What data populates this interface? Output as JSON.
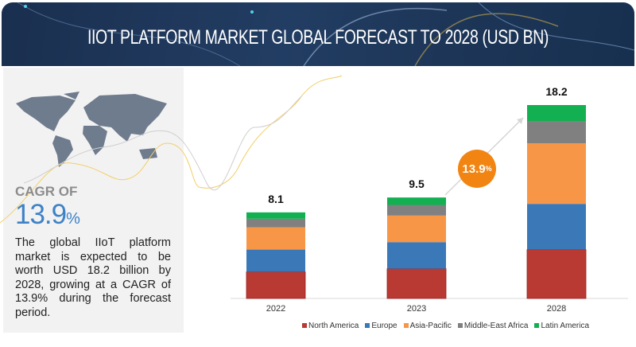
{
  "header": {
    "title": "IIOT PLATFORM MARKET GLOBAL FORECAST TO 2028 (USD BN)"
  },
  "left_panel": {
    "cagr_label": "CAGR OF",
    "cagr_value": "13.9",
    "cagr_unit": "%",
    "description": "The global IIoT platform market is expected to be worth USD 18.2 billion by 2028, growing at a CAGR of 13.9% during the forecast period."
  },
  "badge": {
    "value": "13.9",
    "unit": "%",
    "color": "#f28411"
  },
  "chart_data": {
    "type": "bar",
    "stacked": true,
    "title": "IIOT PLATFORM MARKET GLOBAL FORECAST TO 2028 (USD BN)",
    "categories": [
      "2022",
      "2023",
      "2028"
    ],
    "totals": [
      "8.1",
      "9.5",
      "18.2"
    ],
    "series": [
      {
        "name": "North America",
        "color": "#b93a32",
        "values": [
          2.5,
          2.8,
          4.6
        ]
      },
      {
        "name": "Europe",
        "color": "#3a78b8",
        "values": [
          2.1,
          2.5,
          4.3
        ]
      },
      {
        "name": "Asia-Pacific",
        "color": "#f79646",
        "values": [
          2.1,
          2.5,
          5.7
        ]
      },
      {
        "name": "Middle-East Africa",
        "color": "#808080",
        "values": [
          0.8,
          1.0,
          2.1
        ]
      },
      {
        "name": "Latin America",
        "color": "#12b050",
        "values": [
          0.6,
          0.7,
          1.5
        ]
      }
    ],
    "ylim": [
      0,
      18.2
    ],
    "cagr": "13.9%",
    "legend": "bottom"
  }
}
